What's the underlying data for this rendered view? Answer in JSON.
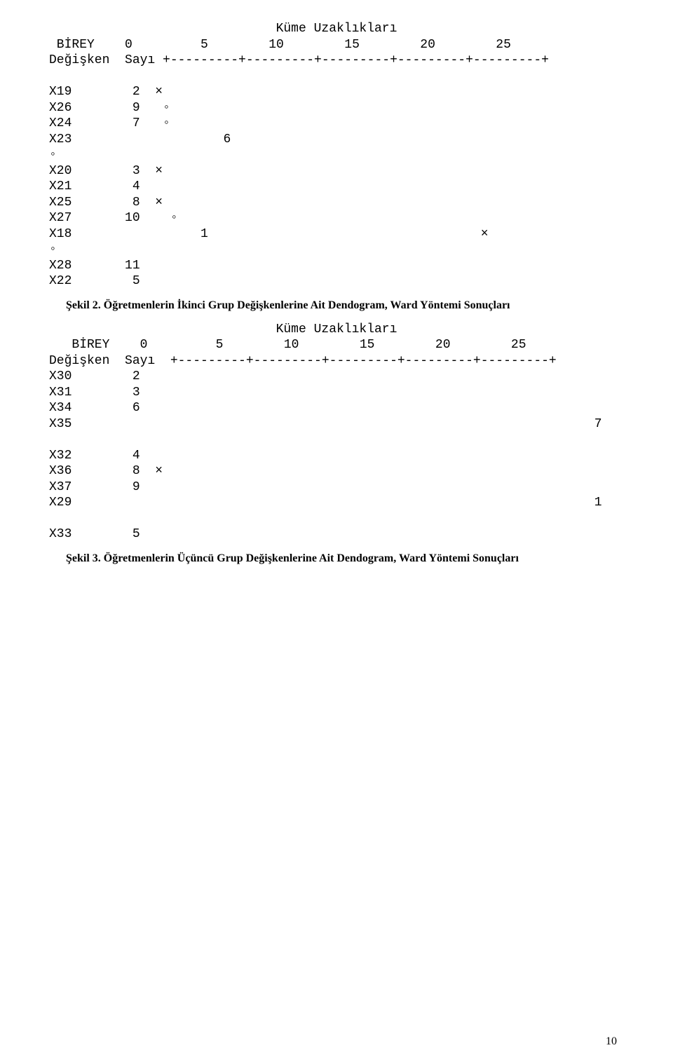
{
  "dendro1": {
    "title": "Küme Uzaklıkları",
    "header1": " BİREY    0         5        10        15        20        25",
    "header2": "Değişken  Sayı +---------+---------+---------+---------+---------+",
    "lines": [
      "",
      "X19        2  ×",
      "X26        9   ◦ ",
      "X24        7   ◦ ",
      "X23                    6                                  ",
      "◦",
      "X20        3  ×                                              ",
      "X21        4                                                  ",
      "X25        8  ×                               ",
      "X27       10    ◦                              ",
      "X18                 1                                    ×",
      "◦",
      "X28       11                    ",
      "X22        5  "
    ],
    "caption": "Şekil 2. Öğretmenlerin İkinci Grup Değişkenlerine Ait Dendogram, Ward Yöntemi Sonuçları"
  },
  "dendro2": {
    "title": "Küme Uzaklıkları",
    "header1": "   BİREY    0         5        10        15        20        25",
    "header2": "Değişken  Sayı  +---------+---------+---------+---------+---------+",
    "lines": [
      "X30        2  ",
      "X31        3  ",
      "X34        6    ",
      "X35                                                                     7",
      "",
      "X32        4                                                              ",
      "X36        8  × ",
      "X37        9    ",
      "X29                                                                     1",
      "",
      "X33        5  "
    ],
    "caption": "Şekil 3. Öğretmenlerin Üçüncü Grup Değişkenlerine Ait Dendogram, Ward Yöntemi Sonuçları"
  },
  "page_number": "10"
}
